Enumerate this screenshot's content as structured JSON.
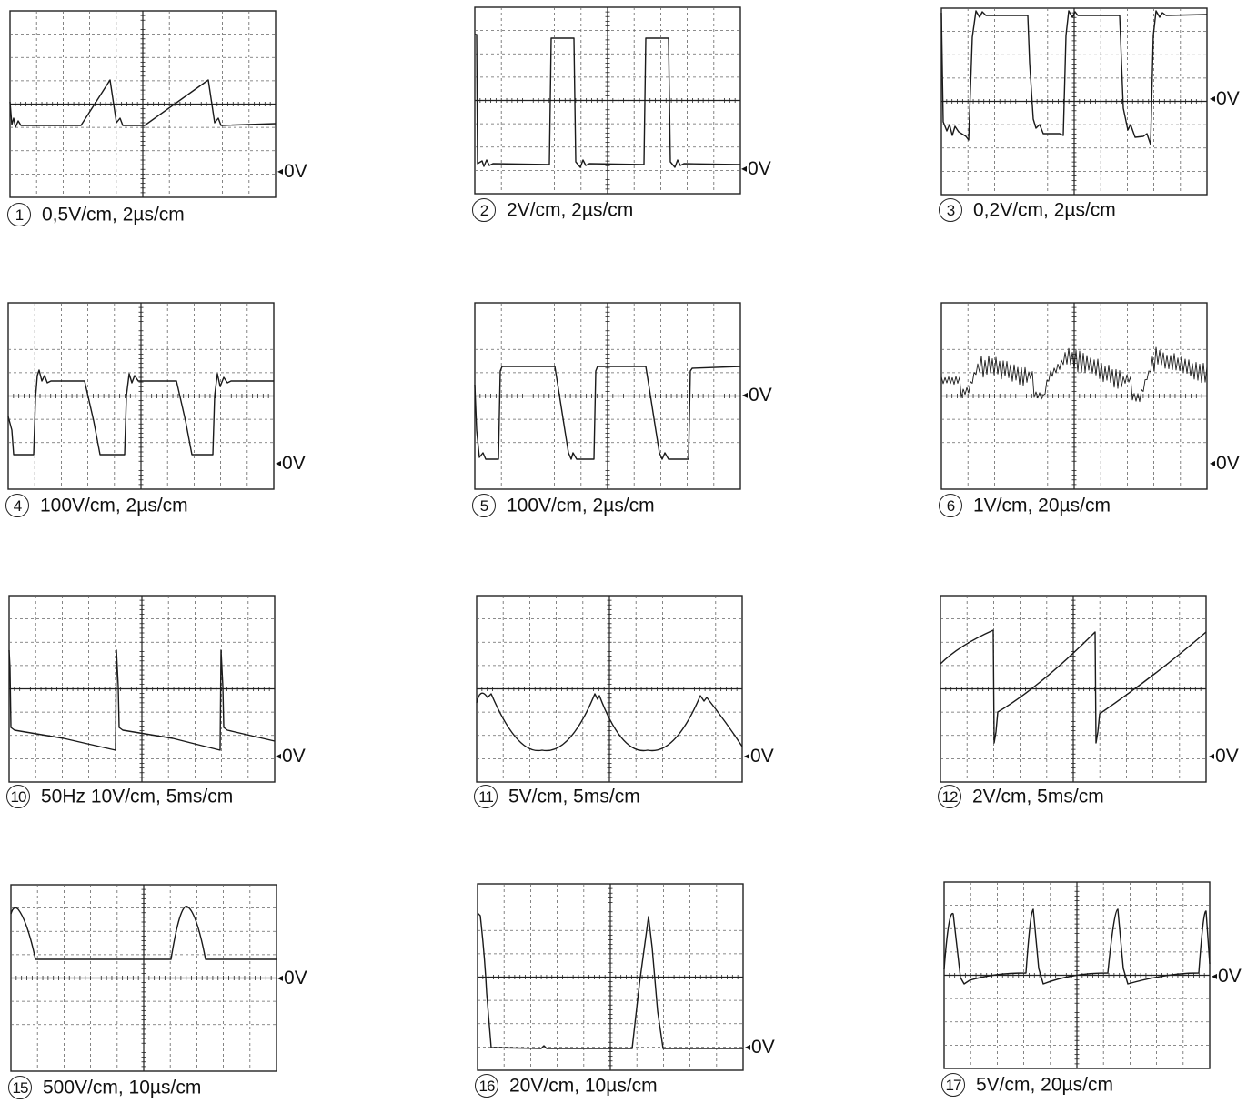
{
  "panels": [
    {
      "id": "1",
      "number": "1",
      "caption": "0,5V/cm, 2µs/cm",
      "zero_label": "0V",
      "waveform": "sawtooth-pulse"
    },
    {
      "id": "2",
      "number": "2",
      "caption": "2V/cm, 2µs/cm",
      "zero_label": "0V",
      "waveform": "narrow-square"
    },
    {
      "id": "3",
      "number": "3",
      "caption": "0,2V/cm, 2µs/cm",
      "zero_label": "0V",
      "waveform": "square-ringing"
    },
    {
      "id": "4",
      "number": "4",
      "caption": "100V/cm, 2µs/cm",
      "zero_label": "0V",
      "waveform": "square-ringing-sloped"
    },
    {
      "id": "5",
      "number": "5",
      "caption": "100V/cm, 2µs/cm",
      "zero_label": "0V",
      "waveform": "square-sloped"
    },
    {
      "id": "6",
      "number": "6",
      "caption": "1V/cm, 20µs/cm",
      "zero_label": "0V",
      "waveform": "noisy-burst"
    },
    {
      "id": "10",
      "number": "10",
      "caption": "50Hz  10V/cm, 5ms/cm",
      "zero_label": "0V",
      "waveform": "spike-decay"
    },
    {
      "id": "11",
      "number": "11",
      "caption": "5V/cm, 5ms/cm",
      "zero_label": "0V",
      "waveform": "parabolic-arcs"
    },
    {
      "id": "12",
      "number": "12",
      "caption": "2V/cm, 5ms/cm",
      "zero_label": "0V",
      "waveform": "sawtooth-rising"
    },
    {
      "id": "15",
      "number": "15",
      "caption": "500V/cm, 10µs/cm",
      "zero_label": "0V",
      "waveform": "half-sine-pulses"
    },
    {
      "id": "16",
      "number": "16",
      "caption": "20V/cm, 10µs/cm",
      "zero_label": "0V",
      "waveform": "narrow-pulse"
    },
    {
      "id": "17",
      "number": "17",
      "caption": "5V/cm, 20µs/cm",
      "zero_label": "0V",
      "waveform": "pulse-train"
    }
  ],
  "colors": {
    "trace": "#1a1a1a",
    "grid_major": "#222222",
    "grid_minor": "#666666",
    "background": "#ffffff"
  }
}
